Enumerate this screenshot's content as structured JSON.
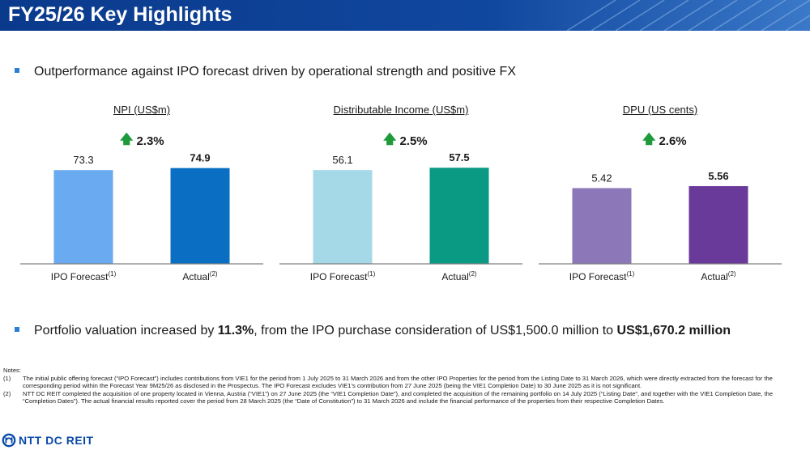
{
  "header": {
    "title": "FY25/26 Key Highlights"
  },
  "bullets": [
    {
      "text": "Outperformance against IPO forecast driven by operational strength and positive FX"
    },
    {
      "text_pre": "Portfolio valuation increased by ",
      "bold1": "11.3%",
      "text_mid": ", from the IPO purchase consideration of US$1,500.0 million to ",
      "bold2": "US$1,670.2 million"
    }
  ],
  "chart_data": [
    {
      "type": "bar",
      "title": "NPI (US$m)",
      "change": "2.3%",
      "categories": [
        "IPO Forecast",
        "Actual"
      ],
      "category_notes": [
        "(1)",
        "(2)"
      ],
      "values": [
        73.3,
        74.9
      ],
      "value_labels": [
        "73.3",
        "74.9"
      ],
      "colors": [
        "#6aaaf0",
        "#0a6fc2"
      ],
      "ylim": [
        0,
        100
      ]
    },
    {
      "type": "bar",
      "title": "Distributable Income (US$m)",
      "change": "2.5%",
      "categories": [
        "IPO Forecast",
        "Actual"
      ],
      "category_notes": [
        "(1)",
        "(2)"
      ],
      "values": [
        56.1,
        57.5
      ],
      "value_labels": [
        "56.1",
        "57.5"
      ],
      "colors": [
        "#a6d9e8",
        "#0a9a84"
      ],
      "ylim": [
        0,
        76.5
      ]
    },
    {
      "type": "bar",
      "title": "DPU (US cents)",
      "change": "2.6%",
      "categories": [
        "IPO Forecast",
        "Actual"
      ],
      "category_notes": [
        "(1)",
        "(2)"
      ],
      "values": [
        5.42,
        5.56
      ],
      "value_labels": [
        "5.42",
        "5.56"
      ],
      "colors": [
        "#8c78b8",
        "#6a3a9a"
      ],
      "ylim": [
        0,
        9.15
      ]
    }
  ],
  "notes": {
    "heading": "Notes:",
    "items": [
      {
        "num": "(1)",
        "text": "The initial public offering forecast (“IPO Forecast”) includes contributions from VIE1 for the period from 1 July 2025 to 31 March 2026 and from the other IPO Properties for the period from the Listing Date to 31 March 2026, which were directly extracted from the forecast for the corresponding period within the Forecast Year 9M25/26 as disclosed in the Prospectus. The IPO Forecast excludes VIE1’s contribution from 27 June 2025 (being the VIE1 Completion Date) to 30 June 2025 as it is not significant."
      },
      {
        "num": "(2)",
        "text": "NTT DC REIT completed the acquisition of one property located in Vienna, Austria (“VIE1”) on 27 June 2025 (the “VIE1 Completion Date”), and completed the acquisition of the remaining portfolio on 14 July 2025 (“Listing Date”, and together with the VIE1 Completion Date, the “Completion Dates”). The actual financial results reported cover the period from 28 March 2025 (the “Date of Constitution”) to 31 March 2026 and include the financial performance of the properties from their respective Completion Dates."
      }
    ]
  },
  "logo": {
    "text": "NTT DC REIT"
  }
}
